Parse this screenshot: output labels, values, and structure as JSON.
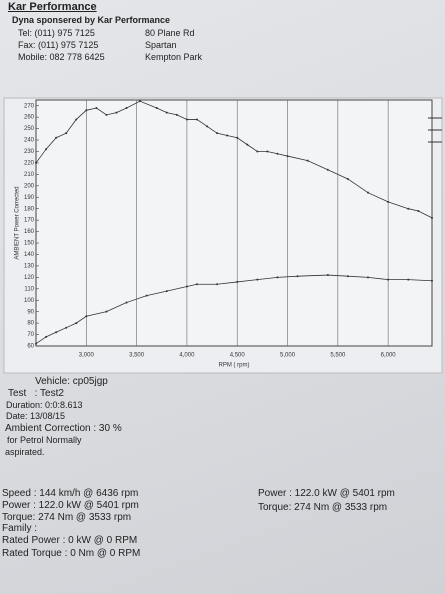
{
  "header": {
    "company": "Kar Performance",
    "subtitle": "Dyna sponsered by Kar Performance",
    "tel": "Tel: (011) 975 7125",
    "fax": "Fax: (011) 975 7125",
    "mobile": "Mobile: 082 778 6425",
    "address": [
      "80 Plane Rd",
      "Spartan",
      "Kempton Park"
    ]
  },
  "chart_data": {
    "type": "line",
    "y_label": "AMBIENT Power Corrected",
    "x_label": "RPM ( rpm)",
    "xlim": [
      2500,
      6436
    ],
    "ylim": [
      60,
      275
    ],
    "xticks": [
      {
        "value": 3000,
        "label": "3,000"
      },
      {
        "value": 3500,
        "label": "3,500"
      },
      {
        "value": 4000,
        "label": "4,000"
      },
      {
        "value": 4500,
        "label": "4,500"
      },
      {
        "value": 5000,
        "label": "5,000"
      },
      {
        "value": 5500,
        "label": "5,500"
      },
      {
        "value": 6000,
        "label": "6,000"
      }
    ],
    "yticks": [
      60,
      70,
      80,
      90,
      100,
      110,
      120,
      130,
      140,
      150,
      160,
      170,
      180,
      190,
      200,
      210,
      220,
      230,
      240,
      250,
      260,
      270
    ],
    "grid": true,
    "series": [
      {
        "color": "#333333",
        "x": [
          2500,
          2600,
          2700,
          2800,
          2900,
          3000,
          3100,
          3200,
          3300,
          3400,
          3533,
          3700,
          3800,
          3900,
          4000,
          4100,
          4200,
          4300,
          4400,
          4500,
          4600,
          4700,
          4800,
          4900,
          5000,
          5200,
          5400,
          5600,
          5800,
          6000,
          6200,
          6300,
          6436
        ],
        "values": [
          220,
          232,
          242,
          246,
          258,
          266,
          268,
          262,
          264,
          268,
          274,
          268,
          264,
          262,
          258,
          258,
          252,
          246,
          244,
          242,
          236,
          230,
          230,
          228,
          226,
          222,
          214,
          206,
          194,
          186,
          180,
          178,
          172
        ]
      },
      {
        "color": "#333333",
        "x": [
          2500,
          2600,
          2700,
          2800,
          2900,
          3000,
          3200,
          3400,
          3600,
          3800,
          4000,
          4100,
          4300,
          4500,
          4700,
          4900,
          5100,
          5401,
          5600,
          5800,
          6000,
          6200,
          6436
        ],
        "values": [
          62,
          68,
          72,
          76,
          80,
          86,
          90,
          98,
          104,
          108,
          112,
          114,
          114,
          116,
          118,
          120,
          121,
          122,
          121,
          120,
          118,
          118,
          117
        ]
      }
    ]
  },
  "info": [
    "Vehicle: cp05jgp",
    "Test   : Test2",
    "Duration: 0:0:8.613",
    "Date: 13/08/15",
    "Ambient Correction : 30 %",
    "for Petrol Normally",
    "aspirated."
  ],
  "summary": [
    "Speed : 144 km/h @ 6436 rpm",
    "Power : 122.0 kW @ 5401 rpm",
    "Torque: 274 Nm @ 3533 rpm",
    "Family :",
    "Rated Power : 0 kW @ 0 RPM",
    "Rated Torque : 0 Nm @ 0 RPM"
  ],
  "summary_right": [
    "Power : 122.0 kW @ 5401 rpm",
    "Torque: 274 Nm @ 3533 rpm"
  ]
}
